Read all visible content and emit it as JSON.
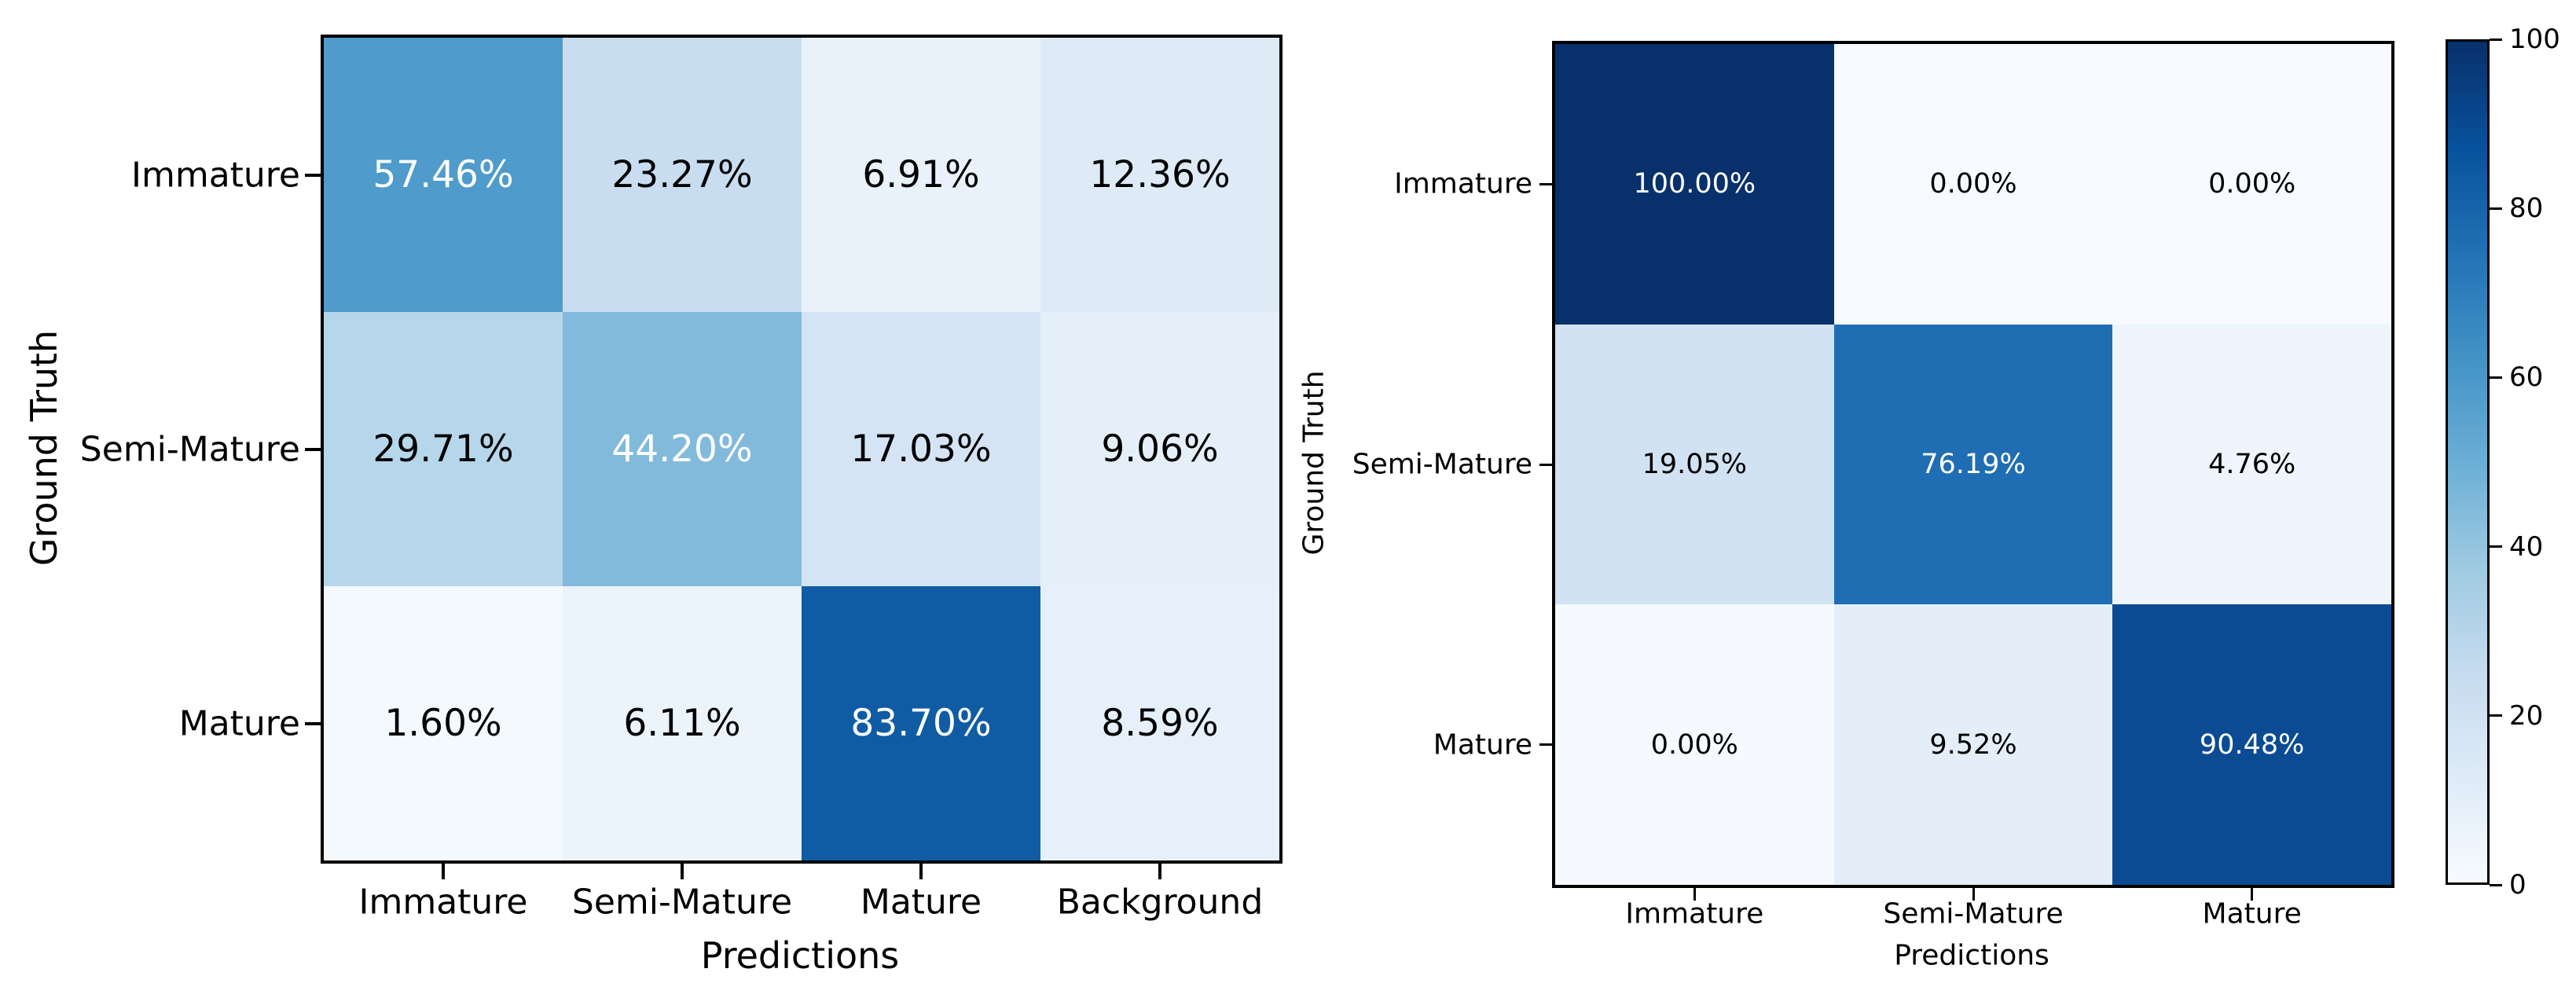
{
  "figure": {
    "background": "#ffffff",
    "text_color": "#000000"
  },
  "chart_data": [
    {
      "type": "heatmap",
      "name": "confusion-matrix-with-background-class",
      "title": "",
      "xlabel": "Predictions",
      "ylabel": "Ground Truth",
      "x_categories": [
        "Immature",
        "Semi-Mature",
        "Mature",
        "Background"
      ],
      "y_categories": [
        "Immature",
        "Semi-Mature",
        "Mature"
      ],
      "values_percent": [
        [
          57.46,
          23.27,
          6.91,
          12.36
        ],
        [
          29.71,
          44.2,
          17.03,
          9.06
        ],
        [
          1.6,
          6.11,
          83.7,
          8.59
        ]
      ],
      "cell_labels": [
        [
          "57.46%",
          "23.27%",
          "6.91%",
          "12.36%"
        ],
        [
          "29.71%",
          "44.20%",
          "17.03%",
          "9.06%"
        ],
        [
          "1.60%",
          "6.11%",
          "83.70%",
          "8.59%"
        ]
      ],
      "cell_colors": [
        [
          "#4f9bcb",
          "#c9ddf0",
          "#e9f2fa",
          "#deebf7"
        ],
        [
          "#b6d6ea",
          "#82badb",
          "#d4e4f4",
          "#e5eff9"
        ],
        [
          "#f4f9fe",
          "#ebf3fb",
          "#105ca4",
          "#e6f0fa"
        ]
      ],
      "cell_text_colors": [
        [
          "#ffffff",
          "#000000",
          "#000000",
          "#000000"
        ],
        [
          "#000000",
          "#ffffff",
          "#000000",
          "#000000"
        ],
        [
          "#000000",
          "#000000",
          "#ffffff",
          "#000000"
        ]
      ],
      "colormap": "Blues",
      "grid": false,
      "colorbar": false
    },
    {
      "type": "heatmap",
      "name": "confusion-matrix-three-class",
      "title": "",
      "xlabel": "Predictions",
      "ylabel": "Ground Truth",
      "x_categories": [
        "Immature",
        "Semi-Mature",
        "Mature"
      ],
      "y_categories": [
        "Immature",
        "Semi-Mature",
        "Mature"
      ],
      "values_percent": [
        [
          100.0,
          0.0,
          0.0
        ],
        [
          19.05,
          76.19,
          4.76
        ],
        [
          0.0,
          9.52,
          90.48
        ]
      ],
      "cell_labels": [
        [
          "100.00%",
          "0.00%",
          "0.00%"
        ],
        [
          "19.05%",
          "76.19%",
          "4.76%"
        ],
        [
          "0.00%",
          "9.52%",
          "90.48%"
        ]
      ],
      "cell_colors": [
        [
          "#08306b",
          "#f7fbff",
          "#f7fbff"
        ],
        [
          "#d1e2f3",
          "#1f6eb3",
          "#eef5fc"
        ],
        [
          "#f6faff",
          "#e3eef9",
          "#0b4b93"
        ]
      ],
      "cell_text_colors": [
        [
          "#ffffff",
          "#000000",
          "#000000"
        ],
        [
          "#000000",
          "#ffffff",
          "#000000"
        ],
        [
          "#000000",
          "#000000",
          "#ffffff"
        ]
      ],
      "colormap": "Blues",
      "grid": false,
      "colorbar": true
    }
  ],
  "colorbar": {
    "ticks": [
      "100",
      "80",
      "60",
      "40",
      "20",
      "0"
    ],
    "tick_values": [
      100,
      80,
      60,
      40,
      20,
      0
    ],
    "range": [
      0,
      100
    ],
    "colormap": "Blues"
  }
}
